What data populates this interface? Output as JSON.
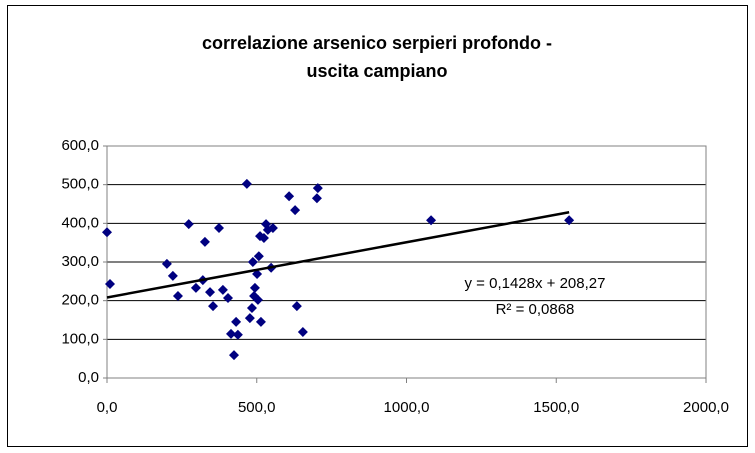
{
  "chart_data": {
    "type": "scatter",
    "title": [
      "correlazione arsenico serpieri profondo -",
      "uscita campiano"
    ],
    "series": [
      {
        "color": "#000080",
        "x": [
          0,
          10,
          200,
          220,
          237,
          273,
          297,
          320,
          327,
          344,
          354,
          374,
          387,
          404,
          414,
          431,
          424,
          437,
          467,
          477,
          484,
          487,
          491,
          494,
          501,
          507,
          504,
          514,
          511,
          524,
          531,
          537,
          548,
          554,
          634,
          654,
          608,
          628,
          704,
          701,
          1082,
          1543
        ],
        "values": [
          377,
          243,
          295,
          264,
          212,
          398,
          233,
          253,
          352,
          222,
          186,
          388,
          228,
          207,
          114,
          145,
          59,
          112,
          502,
          155,
          181,
          300,
          212,
          233,
          269,
          315,
          202,
          145,
          367,
          362,
          398,
          383,
          285,
          388,
          186,
          119,
          470,
          434,
          491,
          465,
          408,
          408
        ]
      }
    ],
    "trendline": {
      "slope": 0.1428,
      "intercept": 208.27,
      "color": "#000000",
      "equation": "y = 0,1428x + 208,27",
      "r_squared": 0.0868,
      "r_squared_label": "R² = 0,0868"
    },
    "xlim": [
      0,
      2000
    ],
    "xticks": [
      {
        "value": 0,
        "label": "0,0"
      },
      {
        "value": 500,
        "label": "500,0"
      },
      {
        "value": 1000,
        "label": "1000,0"
      },
      {
        "value": 1500,
        "label": "1500,0"
      },
      {
        "value": 2000,
        "label": "2000,0"
      }
    ],
    "ylim": [
      0,
      600
    ],
    "yticks": [
      {
        "value": 0,
        "label": "0,0"
      },
      {
        "value": 100,
        "label": "100,0"
      },
      {
        "value": 200,
        "label": "200,0"
      },
      {
        "value": 300,
        "label": "300,0"
      },
      {
        "value": 400,
        "label": "400,0"
      },
      {
        "value": 500,
        "label": "500,0"
      },
      {
        "value": 600,
        "label": "600,0"
      }
    ],
    "grid": true
  }
}
